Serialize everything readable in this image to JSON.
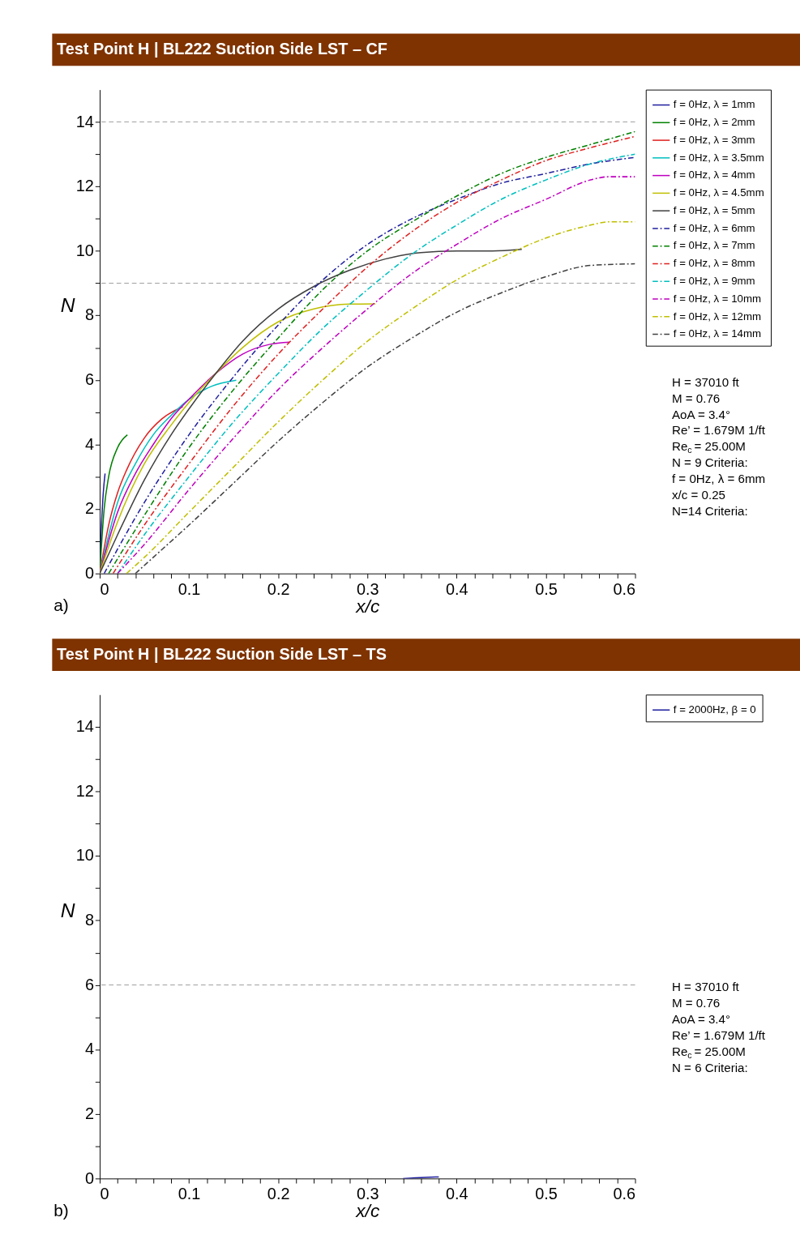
{
  "chart_data": [
    {
      "type": "line",
      "title": "Test Point H | BL222 Suction Side LST – CF",
      "xlabel": "x/c",
      "ylabel": "N",
      "xlim": [
        0,
        0.6
      ],
      "ylim": [
        0,
        15
      ],
      "xticks": [
        0,
        {
          "value": 0.02,
          "label": null
        },
        {
          "value": 0.04,
          "label": null
        },
        {
          "value": 0.06,
          "label": null
        },
        {
          "value": 0.08,
          "label": null
        },
        0.1,
        {
          "value": 0.12,
          "label": null
        },
        {
          "value": 0.14,
          "label": null
        },
        {
          "value": 0.16,
          "label": null
        },
        {
          "value": 0.18,
          "label": null
        },
        0.2,
        {
          "value": 0.22,
          "label": null
        },
        {
          "value": 0.24,
          "label": null
        },
        {
          "value": 0.26,
          "label": null
        },
        {
          "value": 0.28,
          "label": null
        },
        0.3,
        {
          "value": 0.32,
          "label": null
        },
        {
          "value": 0.34,
          "label": null
        },
        {
          "value": 0.36,
          "label": null
        },
        {
          "value": 0.38,
          "label": null
        },
        0.4,
        {
          "value": 0.42,
          "label": null
        },
        {
          "value": 0.44,
          "label": null
        },
        {
          "value": 0.46,
          "label": null
        },
        {
          "value": 0.48,
          "label": null
        },
        0.5,
        {
          "value": 0.52,
          "label": null
        },
        {
          "value": 0.54,
          "label": null
        },
        {
          "value": 0.56,
          "label": null
        },
        {
          "value": 0.58,
          "label": null
        },
        0.6
      ],
      "yticks": [
        0,
        {
          "value": 1,
          "label": null
        },
        2,
        {
          "value": 3,
          "label": null
        },
        4,
        {
          "value": 5,
          "label": null
        },
        6,
        {
          "value": 7,
          "label": null
        },
        8,
        {
          "value": 9,
          "label": null
        },
        10,
        {
          "value": 11,
          "label": null
        },
        12,
        {
          "value": 13,
          "label": null
        },
        14
      ],
      "grid": false,
      "legend": "right",
      "ref_lines": [
        {
          "axis": "y",
          "value": 14,
          "color": "#999999",
          "line_style": "dashed"
        },
        {
          "axis": "y",
          "value": 9,
          "color": "#999999",
          "line_style": "dashed"
        }
      ],
      "annotations": [
        "a)",
        "H = 37010 ft",
        "M = 0.76",
        "AoA = 3.4°",
        "Re’ = 1.679M 1/ft",
        "Re$_{c}$ = 25.00M",
        "N = 9 Criteria:",
        "f = 0Hz, λ = 6mm",
        "x/c = 0.25",
        "N=14 Criteria:"
      ],
      "series": [
        {
          "name": "f = 0Hz, λ = 1mm",
          "color": "#1f1f9f",
          "line_style": "solid",
          "x": [
            0,
            0.002,
            0.004,
            0.006
          ],
          "values": [
            0,
            1.5,
            2.5,
            3.1
          ]
        },
        {
          "name": "f = 0Hz, λ = 2mm",
          "color": "#008000",
          "line_style": "solid",
          "x": [
            0,
            0.005,
            0.01,
            0.02,
            0.031
          ],
          "values": [
            0,
            2,
            3,
            3.9,
            4.3
          ]
        },
        {
          "name": "f = 0Hz, λ = 3mm",
          "color": "#e02020",
          "line_style": "solid",
          "x": [
            0,
            0.01,
            0.02,
            0.03,
            0.05,
            0.07,
            0.093
          ],
          "values": [
            0,
            1.5,
            2.5,
            3.2,
            4.2,
            4.8,
            5.17
          ]
        },
        {
          "name": "f = 0Hz, λ = 3.5mm",
          "color": "#00bfbf",
          "line_style": "solid",
          "x": [
            0,
            0.02,
            0.04,
            0.06,
            0.08,
            0.1,
            0.125,
            0.153
          ],
          "values": [
            0,
            2.2,
            3.4,
            4.3,
            4.9,
            5.4,
            5.8,
            5.99
          ]
        },
        {
          "name": "f = 0Hz, λ = 4mm",
          "color": "#bf00bf",
          "line_style": "solid",
          "x": [
            0,
            0.02,
            0.04,
            0.06,
            0.08,
            0.1,
            0.13,
            0.16,
            0.19,
            0.213
          ],
          "values": [
            0,
            1.9,
            3.1,
            4.0,
            4.8,
            5.4,
            6.2,
            6.8,
            7.1,
            7.17
          ]
        },
        {
          "name": "f = 0Hz, λ = 4.5mm",
          "color": "#bfbf00",
          "line_style": "solid",
          "x": [
            0,
            0.02,
            0.05,
            0.08,
            0.1,
            0.13,
            0.16,
            0.2,
            0.24,
            0.28,
            0.309
          ],
          "values": [
            0,
            1.6,
            3.4,
            4.6,
            5.3,
            6.2,
            7.0,
            7.8,
            8.2,
            8.35,
            8.36
          ]
        },
        {
          "name": "f = 0Hz, λ = 5mm",
          "color": "#404040",
          "line_style": "solid",
          "x": [
            0,
            0.02,
            0.05,
            0.08,
            0.1,
            0.13,
            0.16,
            0.2,
            0.24,
            0.28,
            0.32,
            0.36,
            0.4,
            0.44,
            0.473
          ],
          "values": [
            0,
            1.2,
            2.9,
            4.3,
            5.1,
            6.2,
            7.2,
            8.2,
            8.9,
            9.4,
            9.75,
            9.95,
            10.0,
            10.0,
            10.05
          ]
        },
        {
          "name": "f = 0Hz, λ = 6mm",
          "color": "#1f1f9f",
          "line_style": "dashed",
          "x": [
            0.005,
            0.05,
            0.1,
            0.15,
            0.2,
            0.25,
            0.3,
            0.35,
            0.4,
            0.45,
            0.5,
            0.55,
            0.6
          ],
          "values": [
            0,
            2.2,
            4.3,
            6.1,
            7.7,
            9.1,
            10.2,
            11.0,
            11.6,
            12.1,
            12.4,
            12.7,
            12.9
          ]
        },
        {
          "name": "f = 0Hz, λ = 7mm",
          "color": "#008000",
          "line_style": "dashed",
          "x": [
            0.01,
            0.05,
            0.1,
            0.15,
            0.2,
            0.25,
            0.3,
            0.35,
            0.4,
            0.45,
            0.5,
            0.55,
            0.6
          ],
          "values": [
            0,
            1.8,
            3.9,
            5.7,
            7.3,
            8.8,
            10.0,
            10.9,
            11.7,
            12.4,
            12.9,
            13.3,
            13.7
          ]
        },
        {
          "name": "f = 0Hz, λ = 8mm",
          "color": "#e02020",
          "line_style": "dashed",
          "x": [
            0.015,
            0.05,
            0.1,
            0.15,
            0.2,
            0.25,
            0.3,
            0.35,
            0.4,
            0.45,
            0.5,
            0.55,
            0.6
          ],
          "values": [
            0,
            1.5,
            3.4,
            5.2,
            6.8,
            8.2,
            9.5,
            10.6,
            11.5,
            12.2,
            12.8,
            13.2,
            13.55
          ]
        },
        {
          "name": "f = 0Hz, λ = 9mm",
          "color": "#00bfbf",
          "line_style": "dashed",
          "x": [
            0.02,
            0.05,
            0.1,
            0.15,
            0.2,
            0.25,
            0.3,
            0.35,
            0.4,
            0.45,
            0.5,
            0.55,
            0.6
          ],
          "values": [
            0,
            1.2,
            3.0,
            4.7,
            6.2,
            7.6,
            8.8,
            9.9,
            10.8,
            11.6,
            12.2,
            12.7,
            13.0
          ]
        },
        {
          "name": "f = 0Hz, λ = 10mm",
          "color": "#bf00bf",
          "line_style": "dashed",
          "x": [
            0.02,
            0.05,
            0.1,
            0.15,
            0.2,
            0.25,
            0.3,
            0.35,
            0.4,
            0.45,
            0.5,
            0.55,
            0.57,
            0.6
          ],
          "values": [
            0,
            0.9,
            2.6,
            4.2,
            5.7,
            7.0,
            8.2,
            9.3,
            10.2,
            11.0,
            11.6,
            12.2,
            12.3,
            12.3
          ]
        },
        {
          "name": "f = 0Hz, λ = 12mm",
          "color": "#bfbf00",
          "line_style": "dashed",
          "x": [
            0.03,
            0.05,
            0.1,
            0.15,
            0.2,
            0.25,
            0.3,
            0.35,
            0.4,
            0.45,
            0.5,
            0.55,
            0.57,
            0.6
          ],
          "values": [
            0,
            0.5,
            1.9,
            3.3,
            4.7,
            6.0,
            7.2,
            8.2,
            9.1,
            9.8,
            10.4,
            10.8,
            10.9,
            10.9
          ]
        },
        {
          "name": "f = 0Hz, λ = 14mm",
          "color": "#404040",
          "line_style": "dashed",
          "x": [
            0.04,
            0.06,
            0.1,
            0.15,
            0.2,
            0.25,
            0.3,
            0.35,
            0.4,
            0.45,
            0.5,
            0.55,
            0.6
          ],
          "values": [
            0,
            0.5,
            1.5,
            2.8,
            4.1,
            5.3,
            6.4,
            7.3,
            8.1,
            8.7,
            9.2,
            9.55,
            9.6
          ]
        }
      ]
    },
    {
      "type": "line",
      "title": "Test Point H | BL222 Suction Side LST – TS",
      "xlabel": "x/c",
      "ylabel": "N",
      "xlim": [
        0,
        0.6
      ],
      "ylim": [
        0,
        15
      ],
      "xticks": [
        0,
        {
          "value": 0.02,
          "label": null
        },
        {
          "value": 0.04,
          "label": null
        },
        {
          "value": 0.06,
          "label": null
        },
        {
          "value": 0.08,
          "label": null
        },
        0.1,
        {
          "value": 0.12,
          "label": null
        },
        {
          "value": 0.14,
          "label": null
        },
        {
          "value": 0.16,
          "label": null
        },
        {
          "value": 0.18,
          "label": null
        },
        0.2,
        {
          "value": 0.22,
          "label": null
        },
        {
          "value": 0.24,
          "label": null
        },
        {
          "value": 0.26,
          "label": null
        },
        {
          "value": 0.28,
          "label": null
        },
        0.3,
        {
          "value": 0.32,
          "label": null
        },
        {
          "value": 0.34,
          "label": null
        },
        {
          "value": 0.36,
          "label": null
        },
        {
          "value": 0.38,
          "label": null
        },
        0.4,
        {
          "value": 0.42,
          "label": null
        },
        {
          "value": 0.44,
          "label": null
        },
        {
          "value": 0.46,
          "label": null
        },
        {
          "value": 0.48,
          "label": null
        },
        0.5,
        {
          "value": 0.52,
          "label": null
        },
        {
          "value": 0.54,
          "label": null
        },
        {
          "value": 0.56,
          "label": null
        },
        {
          "value": 0.58,
          "label": null
        },
        0.6
      ],
      "yticks": [
        0,
        {
          "value": 1,
          "label": null
        },
        2,
        {
          "value": 3,
          "label": null
        },
        4,
        {
          "value": 5,
          "label": null
        },
        6,
        {
          "value": 7,
          "label": null
        },
        8,
        {
          "value": 9,
          "label": null
        },
        10,
        {
          "value": 11,
          "label": null
        },
        12,
        {
          "value": 13,
          "label": null
        },
        14
      ],
      "grid": false,
      "legend": "right",
      "ref_lines": [
        {
          "axis": "y",
          "value": 6,
          "color": "#999999",
          "line_style": "dashed"
        }
      ],
      "annotations": [
        "b)",
        "H = 37010 ft",
        "M = 0.76",
        "AoA = 3.4°",
        "Re’ = 1.679M 1/ft",
        "Re$_{c}$ = 25.00M",
        "N = 6 Criteria:"
      ],
      "series": [
        {
          "name": "f = 2000Hz, β = 0",
          "color": "#1f1f9f",
          "line_style": "solid",
          "x": [
            0.34,
            0.36,
            0.38
          ],
          "values": [
            0,
            0.03,
            0.05
          ]
        }
      ]
    }
  ]
}
